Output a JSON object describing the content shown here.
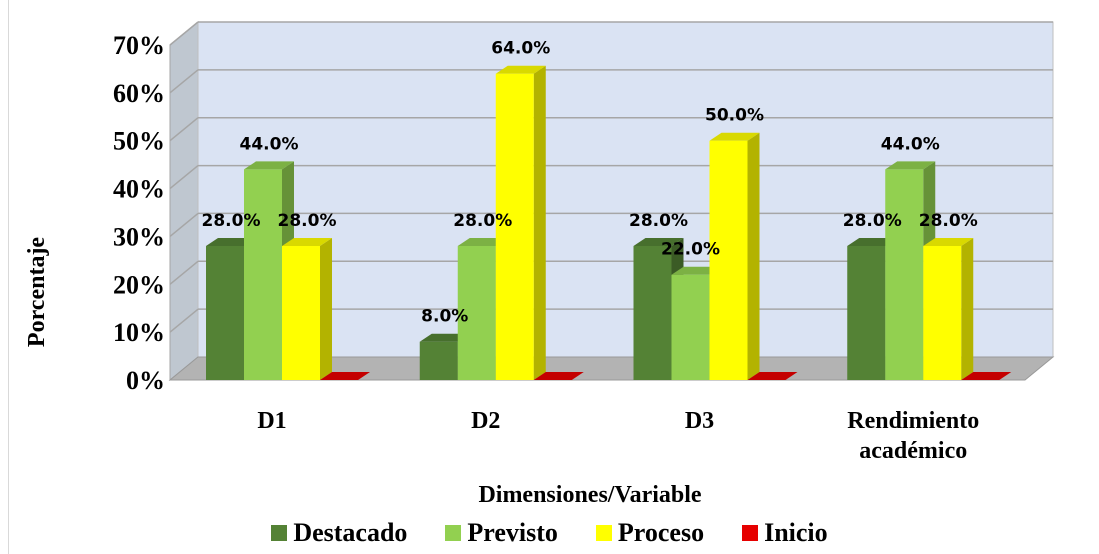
{
  "chart_data": {
    "type": "bar",
    "categories": [
      "D1",
      "D2",
      "D3",
      "Rendimiento\nacadémico"
    ],
    "series": [
      {
        "name": "Destacado",
        "values": [
          28.0,
          8.0,
          28.0,
          28.0
        ],
        "color": "#548235"
      },
      {
        "name": "Previsto",
        "values": [
          44.0,
          28.0,
          22.0,
          44.0
        ],
        "color": "#92d050"
      },
      {
        "name": "Proceso",
        "values": [
          28.0,
          64.0,
          50.0,
          28.0
        ],
        "color": "#ffff00"
      },
      {
        "name": "Inicio",
        "values": [
          0.0,
          0.0,
          0.0,
          0.0
        ],
        "color": "#e60000"
      }
    ],
    "data_labels": [
      [
        "28.0%",
        "8.0%",
        "28.0%",
        "28.0%"
      ],
      [
        "44.0%",
        "28.0%",
        "22.0%",
        "44.0%"
      ],
      [
        "28.0%",
        "64.0%",
        "50.0%",
        "28.0%"
      ]
    ],
    "y_ticks": [
      "0%",
      "10%",
      "20%",
      "30%",
      "40%",
      "50%",
      "60%",
      "70%"
    ],
    "ylim": [
      0,
      70
    ],
    "ylabel": "Porcentaje",
    "xlabel": "Dimensiones/Variable",
    "grid": true,
    "legend_position": "bottom",
    "wall_color": "#dae3f3"
  }
}
